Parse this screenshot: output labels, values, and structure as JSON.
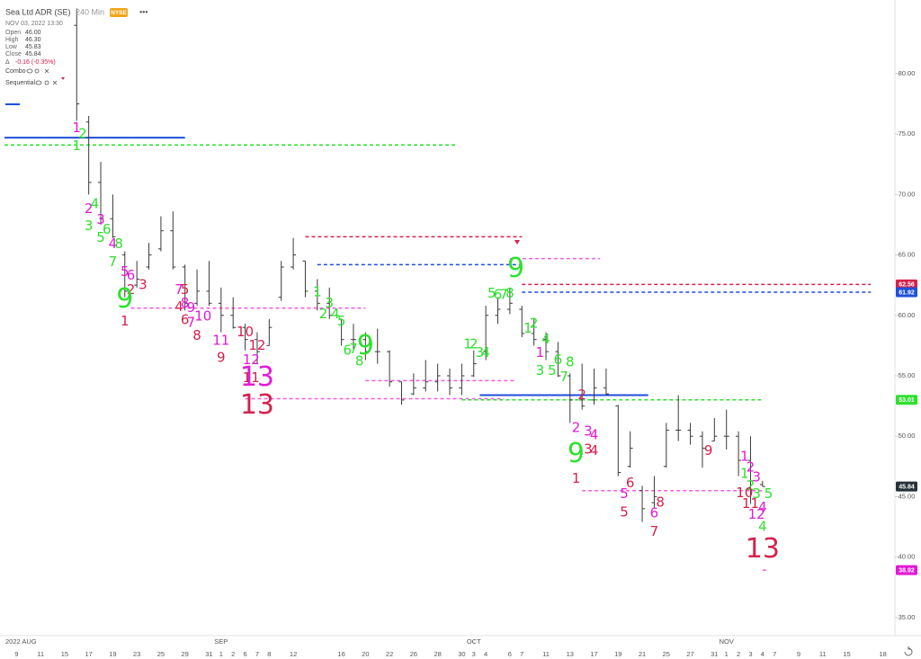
{
  "header": {
    "symbol": "Sea Ltd ADR (SE)",
    "interval": "240 Min",
    "exchange": "NYSE",
    "menu": "•••",
    "date": "NOV 03, 2022 13:30",
    "ohlc": [
      {
        "label": "Open",
        "value": "46.00"
      },
      {
        "label": "High",
        "value": "46.30"
      },
      {
        "label": "Low",
        "value": "45.83"
      },
      {
        "label": "Close",
        "value": "45.84"
      }
    ],
    "change_label": "Δ",
    "change": "-0.16 (-0.35%)",
    "indicators": [
      "Combo",
      "Sequential"
    ]
  },
  "chart_data": {
    "type": "ohlc",
    "categories": [
      "9",
      null,
      "11",
      null,
      "15",
      null,
      "17",
      null,
      "19",
      null,
      "23",
      null,
      "25",
      null,
      "29",
      null,
      "31",
      "1",
      "2",
      "6",
      "7",
      "8",
      null,
      "12",
      null,
      null,
      null,
      "16",
      null,
      "20",
      null,
      "22",
      null,
      "26",
      null,
      "28",
      null,
      "30",
      "3",
      "4",
      null,
      "6",
      "7",
      null,
      "11",
      null,
      "13",
      null,
      "17",
      null,
      "19",
      null,
      "21",
      null,
      "25",
      null,
      "27",
      null,
      "31",
      "1",
      "2",
      "3",
      "4",
      "7",
      null,
      "9",
      null,
      "11",
      null,
      "15",
      null,
      null,
      "18"
    ],
    "months": [
      "2022 AUG",
      "SEP",
      "OCT",
      "NOV"
    ],
    "bar_color": "#3a3a3a",
    "open": [
      null,
      null,
      null,
      null,
      null,
      84,
      76,
      71,
      68,
      65,
      62.5,
      64,
      65.5,
      67,
      64,
      61,
      62,
      61,
      60,
      59,
      58,
      57.5,
      61.5,
      64,
      64.5,
      62,
      61,
      59.7,
      58,
      58,
      57,
      57,
      54.5,
      53.5,
      54,
      54.5,
      55,
      54,
      55,
      57,
      60,
      60.5,
      60.5,
      58.5,
      58,
      57,
      55,
      53,
      53,
      54,
      52.5,
      47.5,
      45.5,
      44.5,
      47.5,
      50.5,
      50.5,
      50,
      49.6,
      50,
      50,
      48,
      46,
      null,
      null,
      null,
      null,
      null,
      null,
      null,
      null,
      null,
      null
    ],
    "high": [
      null,
      null,
      null,
      null,
      null,
      85.4,
      76.5,
      72.7,
      70,
      65.3,
      64.5,
      66,
      68.2,
      68.6,
      64.2,
      63.8,
      64.5,
      62.3,
      61.5,
      59.3,
      58.6,
      59.7,
      64.5,
      66.4,
      64.5,
      63,
      62.3,
      59.7,
      59.3,
      58.6,
      58.9,
      57.1,
      54.5,
      55.2,
      56.3,
      56,
      55.6,
      56,
      57.1,
      60.8,
      61.5,
      62.3,
      60.8,
      59.7,
      58.6,
      57.8,
      55.2,
      56,
      55.6,
      55.6,
      52.6,
      50.4,
      45.9,
      46.7,
      51.1,
      53.4,
      51.1,
      50.4,
      51.5,
      52.2,
      50.4,
      50,
      46.3,
      null,
      null,
      null,
      null,
      null,
      null,
      null,
      null,
      null,
      null
    ],
    "low": [
      null,
      null,
      null,
      null,
      null,
      76.1,
      70,
      67.5,
      66.4,
      61.5,
      62.3,
      63.8,
      65.3,
      63.8,
      60.4,
      60.8,
      60.8,
      58.6,
      58.9,
      57.1,
      56,
      57.5,
      61.2,
      63.8,
      61.5,
      60.4,
      59.7,
      57.5,
      57.1,
      56.3,
      56,
      54.1,
      52.6,
      53.4,
      53.7,
      53.7,
      53.4,
      53.4,
      54.9,
      56.3,
      59.3,
      60.1,
      58.2,
      57.5,
      56.3,
      54.9,
      51.1,
      52.2,
      52.6,
      53.4,
      46.7,
      47.4,
      42.9,
      44.1,
      47.4,
      49.6,
      49.3,
      47.4,
      49.6,
      48.9,
      46.7,
      44.4,
      45.83,
      null,
      null,
      null,
      null,
      null,
      null,
      null,
      null,
      null,
      null
    ],
    "close": [
      null,
      null,
      null,
      null,
      null,
      77.5,
      71,
      68,
      66.5,
      62,
      63,
      65,
      67,
      64,
      61,
      62,
      61,
      60,
      59,
      58,
      57,
      59,
      64,
      65,
      62,
      61,
      60,
      58,
      58,
      57,
      57,
      54.5,
      53,
      54,
      54.5,
      55,
      54,
      55,
      56,
      60,
      60.5,
      61,
      58.5,
      58,
      57,
      55,
      53,
      52.5,
      54,
      53.5,
      47,
      49,
      44,
      45,
      50.5,
      50.5,
      50,
      49,
      50,
      50,
      48,
      46.3,
      45.84,
      null,
      null,
      null,
      null,
      null,
      null,
      null,
      null,
      null,
      null
    ],
    "xlim": [
      -1,
      73
    ],
    "ylim": [
      33.5,
      85.5
    ],
    "yticks": [
      {
        "value": 35,
        "label": "35.00"
      },
      {
        "value": 40,
        "label": "40.00"
      },
      {
        "value": 45,
        "label": "45.00"
      },
      {
        "value": 50,
        "label": "50.00"
      },
      {
        "value": 55,
        "label": "55.00"
      },
      {
        "value": 60,
        "label": "60.00"
      },
      {
        "value": 65,
        "label": "65.00"
      },
      {
        "value": 70,
        "label": "70.00"
      },
      {
        "value": 75,
        "label": "75.00"
      },
      {
        "value": 80,
        "label": "80.00"
      }
    ],
    "colors": {
      "g": "#2ee02e",
      "m": "#e21ad6",
      "r": "#d3224c",
      "b": "#1f4fd8",
      "p": "#f25ce0"
    },
    "levels": [
      {
        "value": 74.7,
        "x": [
          -1,
          14
        ],
        "color": "b",
        "dash": false
      },
      {
        "value": 74.1,
        "x": [
          -1,
          36.5
        ],
        "color": "g",
        "dash": true
      },
      {
        "value": 66.5,
        "x": [
          24,
          42
        ],
        "color": "r",
        "dash": true
      },
      {
        "value": 64.2,
        "x": [
          25,
          42
        ],
        "color": "b",
        "dash": true
      },
      {
        "value": 60.6,
        "x": [
          9.5,
          29
        ],
        "color": "p",
        "dash": true
      },
      {
        "value": 53.1,
        "x": [
          19,
          40.5
        ],
        "color": "p",
        "dash": true
      },
      {
        "value": 54.6,
        "x": [
          29,
          41.5
        ],
        "color": "p",
        "dash": true
      },
      {
        "value": 53.4,
        "x": [
          38.5,
          52.5
        ],
        "color": "b",
        "dash": false
      },
      {
        "value": 53.01,
        "x": [
          37,
          62
        ],
        "color": "g",
        "dash": true
      },
      {
        "value": 64.7,
        "x": [
          41,
          48.5
        ],
        "color": "p",
        "dash": true
      },
      {
        "value": 62.56,
        "x": [
          42,
          71
        ],
        "color": "r",
        "dash": true
      },
      {
        "value": 61.92,
        "x": [
          42,
          71
        ],
        "color": "b",
        "dash": true
      },
      {
        "value": 45.5,
        "x": [
          47,
          62
        ],
        "color": "p",
        "dash": true
      },
      {
        "value": 38.92,
        "x": [
          62,
          62.5
        ],
        "color": "p",
        "dash": true
      }
    ],
    "price_tags": [
      {
        "value": 62.56,
        "label": "62.56",
        "color": "r"
      },
      {
        "value": 61.92,
        "label": "61.92",
        "color": "b"
      },
      {
        "value": 53.01,
        "label": "53.01",
        "color": "g"
      },
      {
        "value": 45.84,
        "label": "45.84",
        "color": "#263238"
      },
      {
        "value": 38.92,
        "label": "38.92",
        "color": "m"
      }
    ],
    "annotations": [
      {
        "label": "1",
        "x": 5,
        "y": 75.5,
        "color": "m"
      },
      {
        "label": "2",
        "x": 5.5,
        "y": 75.0,
        "color": "g"
      },
      {
        "label": "1",
        "x": 5,
        "y": 74.0,
        "color": "g"
      },
      {
        "label": "2",
        "x": 6,
        "y": 68.8,
        "color": "m"
      },
      {
        "label": "4",
        "x": 6.5,
        "y": 69.2,
        "color": "g"
      },
      {
        "label": "3",
        "x": 6,
        "y": 67.4,
        "color": "g"
      },
      {
        "label": "3",
        "x": 7,
        "y": 67.9,
        "color": "m"
      },
      {
        "label": "6",
        "x": 7.5,
        "y": 67.1,
        "color": "g"
      },
      {
        "label": "5",
        "x": 7,
        "y": 66.4,
        "color": "g"
      },
      {
        "label": "4",
        "x": 8,
        "y": 65.9,
        "color": "m"
      },
      {
        "label": "8",
        "x": 8.5,
        "y": 65.9,
        "color": "g"
      },
      {
        "label": "7",
        "x": 8,
        "y": 64.4,
        "color": "g"
      },
      {
        "label": "5",
        "x": 9,
        "y": 63.6,
        "color": "m"
      },
      {
        "label": "6",
        "x": 9.5,
        "y": 63.3,
        "color": "m"
      },
      {
        "label": "2",
        "x": 9.5,
        "y": 62.1,
        "color": "r"
      },
      {
        "label": "3",
        "x": 10.5,
        "y": 62.5,
        "color": "r"
      },
      {
        "label": "9",
        "x": 9,
        "y": 61.3,
        "color": "g",
        "big": true
      },
      {
        "label": "1",
        "x": 9,
        "y": 59.5,
        "color": "r"
      },
      {
        "label": "7",
        "x": 13.5,
        "y": 62.1,
        "color": "m"
      },
      {
        "label": "5",
        "x": 14,
        "y": 62.1,
        "color": "r"
      },
      {
        "label": "4",
        "x": 13.5,
        "y": 60.7,
        "color": "r"
      },
      {
        "label": "8",
        "x": 14,
        "y": 61.0,
        "color": "m"
      },
      {
        "label": "9",
        "x": 14.5,
        "y": 60.6,
        "color": "m"
      },
      {
        "label": "6",
        "x": 14,
        "y": 59.6,
        "color": "r"
      },
      {
        "label": "7",
        "x": 14.5,
        "y": 59.4,
        "color": "m"
      },
      {
        "label": "10",
        "x": 15.5,
        "y": 59.9,
        "color": "m"
      },
      {
        "label": "8",
        "x": 15,
        "y": 58.3,
        "color": "r"
      },
      {
        "label": "11",
        "x": 17,
        "y": 57.9,
        "color": "m"
      },
      {
        "label": "9",
        "x": 17,
        "y": 56.5,
        "color": "r"
      },
      {
        "label": "10",
        "x": 19,
        "y": 58.6,
        "color": "r"
      },
      {
        "label": "12",
        "x": 20,
        "y": 57.5,
        "color": "r"
      },
      {
        "label": "12",
        "x": 19.5,
        "y": 56.3,
        "color": "m"
      },
      {
        "label": "11",
        "x": 19.5,
        "y": 54.8,
        "color": "r"
      },
      {
        "label": "13",
        "x": 20,
        "y": 54.8,
        "color": "m",
        "big": true
      },
      {
        "label": "13",
        "x": 20,
        "y": 52.5,
        "color": "r",
        "big": true
      },
      {
        "label": "1",
        "x": 25,
        "y": 61.9,
        "color": "g"
      },
      {
        "label": "3",
        "x": 26,
        "y": 61.0,
        "color": "g"
      },
      {
        "label": "2",
        "x": 25.5,
        "y": 60.1,
        "color": "g"
      },
      {
        "label": "4",
        "x": 26.5,
        "y": 60.1,
        "color": "g"
      },
      {
        "label": "5",
        "x": 27,
        "y": 59.5,
        "color": "g"
      },
      {
        "label": "6",
        "x": 27.5,
        "y": 57.1,
        "color": "g"
      },
      {
        "label": "7",
        "x": 28,
        "y": 57.2,
        "color": "g"
      },
      {
        "label": "9",
        "x": 29,
        "y": 57.4,
        "color": "g",
        "big": true
      },
      {
        "label": "8",
        "x": 28.5,
        "y": 56.2,
        "color": "g"
      },
      {
        "label": "1",
        "x": 37.5,
        "y": 57.6,
        "color": "g"
      },
      {
        "label": "2",
        "x": 38,
        "y": 57.6,
        "color": "g"
      },
      {
        "label": "3",
        "x": 38.5,
        "y": 56.9,
        "color": "g"
      },
      {
        "label": "4",
        "x": 39,
        "y": 56.9,
        "color": "g"
      },
      {
        "label": "5",
        "x": 39.5,
        "y": 61.8,
        "color": "g"
      },
      {
        "label": "6",
        "x": 40,
        "y": 61.7,
        "color": "g"
      },
      {
        "label": "7",
        "x": 40.5,
        "y": 61.7,
        "color": "g"
      },
      {
        "label": "8",
        "x": 41,
        "y": 61.8,
        "color": "g"
      },
      {
        "label": "9",
        "x": 41.5,
        "y": 63.8,
        "color": "g",
        "big": true
      },
      {
        "label": "1",
        "x": 42.5,
        "y": 58.9,
        "color": "g"
      },
      {
        "label": "2",
        "x": 43,
        "y": 59.3,
        "color": "g"
      },
      {
        "label": "4",
        "x": 44,
        "y": 58.0,
        "color": "g"
      },
      {
        "label": "1",
        "x": 43.5,
        "y": 56.9,
        "color": "m"
      },
      {
        "label": "3",
        "x": 43.5,
        "y": 55.4,
        "color": "g"
      },
      {
        "label": "5",
        "x": 44.5,
        "y": 55.4,
        "color": "g"
      },
      {
        "label": "6",
        "x": 45,
        "y": 56.3,
        "color": "g"
      },
      {
        "label": "7",
        "x": 45.5,
        "y": 54.9,
        "color": "g"
      },
      {
        "label": "8",
        "x": 46,
        "y": 56.1,
        "color": "g"
      },
      {
        "label": "2",
        "x": 47,
        "y": 53.4,
        "color": "r"
      },
      {
        "label": "2",
        "x": 46.5,
        "y": 50.7,
        "color": "m"
      },
      {
        "label": "3",
        "x": 47.5,
        "y": 50.4,
        "color": "m"
      },
      {
        "label": "4",
        "x": 48,
        "y": 50.1,
        "color": "m"
      },
      {
        "label": "3",
        "x": 47.5,
        "y": 48.9,
        "color": "r"
      },
      {
        "label": "4",
        "x": 48,
        "y": 48.8,
        "color": "r"
      },
      {
        "label": "9",
        "x": 46.5,
        "y": 48.5,
        "color": "g",
        "big": true
      },
      {
        "label": "1",
        "x": 46.5,
        "y": 46.5,
        "color": "r"
      },
      {
        "label": "5",
        "x": 50.5,
        "y": 45.2,
        "color": "m"
      },
      {
        "label": "6",
        "x": 51,
        "y": 46.1,
        "color": "r"
      },
      {
        "label": "5",
        "x": 50.5,
        "y": 43.7,
        "color": "r"
      },
      {
        "label": "6",
        "x": 53,
        "y": 43.6,
        "color": "m"
      },
      {
        "label": "8",
        "x": 53.5,
        "y": 44.5,
        "color": "r"
      },
      {
        "label": "7",
        "x": 53,
        "y": 42.1,
        "color": "r"
      },
      {
        "label": "9",
        "x": 57.5,
        "y": 48.8,
        "color": "r"
      },
      {
        "label": "1",
        "x": 60.5,
        "y": 48.3,
        "color": "m"
      },
      {
        "label": "2",
        "x": 61,
        "y": 47.4,
        "color": "m"
      },
      {
        "label": "1",
        "x": 60.5,
        "y": 46.9,
        "color": "g"
      },
      {
        "label": "3",
        "x": 61.5,
        "y": 46.6,
        "color": "m"
      },
      {
        "label": "2",
        "x": 61,
        "y": 45.9,
        "color": "g"
      },
      {
        "label": "10",
        "x": 60.5,
        "y": 45.3,
        "color": "r"
      },
      {
        "label": "3",
        "x": 61.5,
        "y": 45.2,
        "color": "g"
      },
      {
        "label": "5",
        "x": 62.5,
        "y": 45.2,
        "color": "g"
      },
      {
        "label": "11",
        "x": 61,
        "y": 44.4,
        "color": "r"
      },
      {
        "label": "4",
        "x": 62,
        "y": 44.1,
        "color": "m"
      },
      {
        "label": "12",
        "x": 61.5,
        "y": 43.5,
        "color": "m"
      },
      {
        "label": "4",
        "x": 62,
        "y": 42.5,
        "color": "g"
      },
      {
        "label": "13",
        "x": 62,
        "y": 40.6,
        "color": "r",
        "big": true
      }
    ]
  }
}
